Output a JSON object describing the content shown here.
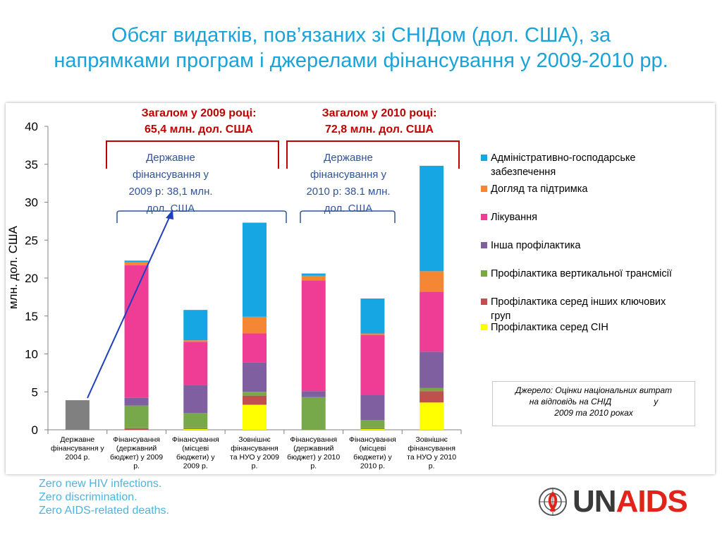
{
  "title_line1": "Обсяг видатків, пов’язаних зі СНІДом (дол. США), за",
  "title_line2": "напрямками програм і джерелами фінансування у 2009-2010 рр.",
  "footer": {
    "line1": "Zero new HIV infections.",
    "line2": "Zero discrimination.",
    "line3": "Zero AIDS-related deaths."
  },
  "logo": {
    "un": "UN",
    "aids": "AIDS"
  },
  "source_note": {
    "line1": "Джерело: Оцінки національних витрат",
    "line2": "на відповідь на СНІД                  у",
    "line3": "2009 та 2010 роках"
  },
  "annotations": {
    "total_2009_line1": "Загалом у 2009 році:",
    "total_2009_line2": "65,4 млн. дол. США",
    "total_2010_line1": "Загалом у 2010 році:",
    "total_2010_line2": "72,8 млн. дол. США",
    "gov_2009": [
      "Державне",
      "фінансування  у",
      "2009 р: 38,1 млн.",
      "дол. США"
    ],
    "gov_2010": [
      "Державне",
      "фінансування у",
      "2010 р: 38.1 млн.",
      "дол. США"
    ]
  },
  "colors": {
    "title": "#1aa3d9",
    "annotation_red": "#c00000",
    "annotation_blue": "#2f5597",
    "arrow": "#1f3fbf"
  },
  "chart_data": {
    "type": "bar",
    "stacked": true,
    "ylabel": "млн. дол. США",
    "ylim": [
      0,
      40
    ],
    "yticks": [
      0,
      5,
      10,
      15,
      20,
      25,
      30,
      35,
      40
    ],
    "grid": false,
    "legend_position": "right",
    "categories": [
      [
        "Державне",
        "фінансування у",
        "2004 р."
      ],
      [
        "Фінансування",
        "(державний",
        "бюджет) у 2009",
        "р."
      ],
      [
        "Фінансування",
        "(місцеві",
        "бюджети) у",
        "2009 р."
      ],
      [
        "Зовнішнє",
        "фінансування",
        "та НУО у 2009",
        "р."
      ],
      [
        "Фінансування",
        "(державний",
        "бюджет) у 2010",
        "р."
      ],
      [
        "Фінансування",
        "(місцеві",
        "бюджети) у",
        "2010 р."
      ],
      [
        "Зовнішнє",
        "фінансування",
        "та НУО у 2010",
        "р."
      ]
    ],
    "single_value": {
      "category_index": 0,
      "value": 3.9,
      "color": "#808080"
    },
    "series": [
      {
        "name": "Профілактика серед СІН",
        "color": "#ffff00",
        "values": [
          0,
          0,
          0.1,
          3.3,
          0,
          0.1,
          3.6
        ]
      },
      {
        "name": "Профілактика серед інших ключових груп",
        "color": "#c0504d",
        "values": [
          0,
          0.2,
          0.1,
          1.2,
          0,
          0.1,
          1.5
        ]
      },
      {
        "name": "Профілактика вертикальної трансмісії",
        "color": "#77a94b",
        "values": [
          0,
          3.0,
          2.0,
          0.5,
          4.3,
          1.1,
          0.4
        ]
      },
      {
        "name": "Інша профілактика",
        "color": "#7f5f9f",
        "values": [
          0,
          1.0,
          3.7,
          3.9,
          0.8,
          3.3,
          4.8
        ]
      },
      {
        "name": "Лікування",
        "color": "#ef3d96",
        "values": [
          0,
          17.5,
          5.7,
          3.8,
          14.6,
          7.9,
          7.9
        ]
      },
      {
        "name": "Догляд та підтримка",
        "color": "#f58634",
        "values": [
          0,
          0.4,
          0.2,
          2.2,
          0.6,
          0.2,
          2.7
        ]
      },
      {
        "name": "Адміністративно-господарське забезпечення",
        "color": "#15a6e3",
        "values": [
          0,
          0.2,
          4.0,
          12.4,
          0.3,
          4.6,
          13.9
        ]
      }
    ],
    "legend_labels": [
      [
        "Адміністративно-господарське",
        "забезпечення"
      ],
      [
        "Догляд та підтримка"
      ],
      [
        "Лікування"
      ],
      [
        "Інша профілактика"
      ],
      [
        "Профілактика вертикальної трансмісії"
      ],
      [
        "Профілактика серед інших ключових",
        "груп"
      ],
      [
        "Профілактика серед СІН"
      ]
    ],
    "legend_colors": [
      "#15a6e3",
      "#f58634",
      "#ef3d96",
      "#7f5f9f",
      "#77a94b",
      "#c0504d",
      "#ffff00"
    ]
  }
}
